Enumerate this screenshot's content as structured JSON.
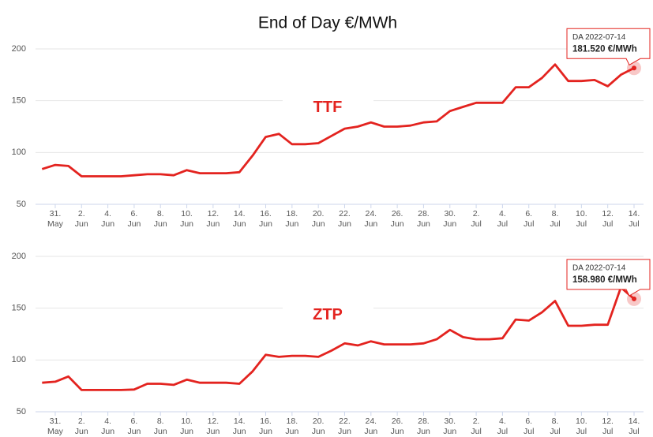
{
  "title": "End of Day €/MWh",
  "chart_data": [
    {
      "type": "line",
      "categories": [
        null,
        [
          "31.",
          "May"
        ],
        null,
        [
          "2.",
          "Jun"
        ],
        null,
        [
          "4.",
          "Jun"
        ],
        null,
        [
          "6.",
          "Jun"
        ],
        null,
        [
          "8.",
          "Jun"
        ],
        null,
        [
          "10.",
          "Jun"
        ],
        null,
        [
          "12.",
          "Jun"
        ],
        null,
        [
          "14.",
          "Jun"
        ],
        null,
        [
          "16.",
          "Jun"
        ],
        null,
        [
          "18.",
          "Jun"
        ],
        null,
        [
          "20.",
          "Jun"
        ],
        null,
        [
          "22.",
          "Jun"
        ],
        null,
        [
          "24.",
          "Jun"
        ],
        null,
        [
          "26.",
          "Jun"
        ],
        null,
        [
          "28.",
          "Jun"
        ],
        null,
        [
          "30.",
          "Jun"
        ],
        null,
        [
          "2.",
          "Jul"
        ],
        null,
        [
          "4.",
          "Jul"
        ],
        null,
        [
          "6.",
          "Jul"
        ],
        null,
        [
          "8.",
          "Jul"
        ],
        null,
        [
          "10.",
          "Jul"
        ],
        null,
        [
          "12.",
          "Jul"
        ],
        null,
        [
          "14.",
          "Jul"
        ]
      ],
      "series": [
        {
          "name": "TTF",
          "color": "#e3231f",
          "values": [
            84,
            88,
            87,
            77,
            77,
            77,
            77,
            78,
            79,
            79,
            78,
            83,
            80,
            80,
            80,
            81,
            97,
            115,
            118,
            108,
            108,
            109,
            116,
            123,
            125,
            129,
            125,
            125,
            126,
            129,
            130,
            140,
            144,
            148,
            148,
            148,
            163,
            163,
            172,
            185,
            169,
            169,
            170,
            164,
            175,
            181.52
          ]
        }
      ],
      "tooltip": {
        "date": "DA 2022-07-14",
        "value": "181.520 €/MWh"
      },
      "ylim": [
        50,
        200
      ],
      "yticks": [
        50,
        100,
        150,
        200
      ],
      "grid": true
    },
    {
      "type": "line",
      "categories": [
        null,
        [
          "31.",
          "May"
        ],
        null,
        [
          "2.",
          "Jun"
        ],
        null,
        [
          "4.",
          "Jun"
        ],
        null,
        [
          "6.",
          "Jun"
        ],
        null,
        [
          "8.",
          "Jun"
        ],
        null,
        [
          "10.",
          "Jun"
        ],
        null,
        [
          "12.",
          "Jun"
        ],
        null,
        [
          "14.",
          "Jun"
        ],
        null,
        [
          "16.",
          "Jun"
        ],
        null,
        [
          "18.",
          "Jun"
        ],
        null,
        [
          "20.",
          "Jun"
        ],
        null,
        [
          "22.",
          "Jun"
        ],
        null,
        [
          "24.",
          "Jun"
        ],
        null,
        [
          "26.",
          "Jun"
        ],
        null,
        [
          "28.",
          "Jun"
        ],
        null,
        [
          "30.",
          "Jun"
        ],
        null,
        [
          "2.",
          "Jul"
        ],
        null,
        [
          "4.",
          "Jul"
        ],
        null,
        [
          "6.",
          "Jul"
        ],
        null,
        [
          "8.",
          "Jul"
        ],
        null,
        [
          "10.",
          "Jul"
        ],
        null,
        [
          "12.",
          "Jul"
        ],
        null,
        [
          "14.",
          "Jul"
        ]
      ],
      "series": [
        {
          "name": "ZTP",
          "color": "#e3231f",
          "values": [
            78,
            79,
            84,
            71,
            71,
            71,
            71,
            71.5,
            77,
            77,
            76,
            81,
            78,
            78,
            78,
            77,
            89,
            105,
            103,
            104,
            104,
            103,
            109,
            116,
            114,
            118,
            115,
            115,
            115,
            116,
            120,
            129,
            122,
            120,
            120,
            121,
            139,
            138,
            146,
            157,
            133,
            133,
            134,
            134,
            170,
            158.98
          ]
        }
      ],
      "tooltip": {
        "date": "DA 2022-07-14",
        "value": "158.980 €/MWh"
      },
      "ylim": [
        50,
        200
      ],
      "yticks": [
        50,
        100,
        150,
        200
      ],
      "grid": true
    }
  ]
}
